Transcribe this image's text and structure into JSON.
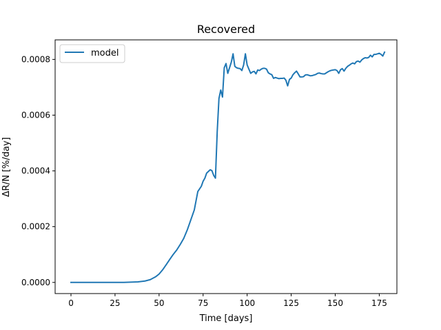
{
  "chart_data": {
    "type": "line",
    "title": "Recovered",
    "xlabel": "Time [days]",
    "ylabel": "ΔR/N [%/day]",
    "xlim": [
      -9,
      185
    ],
    "ylim": [
      -4e-05,
      0.00087
    ],
    "xticks": [
      0,
      25,
      50,
      75,
      100,
      125,
      150,
      175
    ],
    "xtick_labels": [
      "0",
      "25",
      "50",
      "75",
      "100",
      "125",
      "150",
      "175"
    ],
    "yticks": [
      0.0,
      0.0002,
      0.0004,
      0.0006,
      0.0008
    ],
    "ytick_labels": [
      "0.0000",
      "0.0002",
      "0.0004",
      "0.0006",
      "0.0008"
    ],
    "grid": false,
    "legend": {
      "position": "top-left",
      "entries": [
        "model"
      ]
    },
    "series": [
      {
        "name": "model",
        "color": "#1f77b4",
        "x": [
          0,
          10,
          20,
          30,
          38,
          42,
          45,
          48,
          50,
          52,
          54,
          56,
          58,
          60,
          62,
          64,
          66,
          68,
          70,
          72,
          74,
          75,
          76,
          77,
          78,
          79,
          80,
          81,
          82,
          83,
          84,
          85,
          86,
          87,
          88,
          89,
          90,
          91,
          92,
          93,
          94,
          95,
          96,
          97,
          98,
          99,
          100,
          101,
          102,
          103,
          104,
          105,
          106,
          107,
          108,
          109,
          110,
          111,
          112,
          113,
          114,
          115,
          116,
          117,
          118,
          119,
          120,
          121,
          122,
          123,
          124,
          125,
          126,
          127,
          128,
          129,
          130,
          131,
          132,
          133,
          134,
          135,
          136,
          137,
          138,
          139,
          140,
          141,
          142,
          143,
          144,
          145,
          146,
          147,
          148,
          149,
          150,
          151,
          152,
          153,
          154,
          155,
          156,
          157,
          158,
          159,
          160,
          161,
          162,
          163,
          164,
          165,
          166,
          167,
          168,
          169,
          170,
          171,
          172,
          173,
          174,
          175,
          176,
          177,
          178
        ],
        "y": [
          0.0,
          0.0,
          0.0,
          0.0,
          2e-06,
          5e-06,
          1e-05,
          2e-05,
          3e-05,
          4.5e-05,
          6.3e-05,
          8.2e-05,
          0.0001,
          0.000116,
          0.000136,
          0.000158,
          0.000188,
          0.000224,
          0.00026,
          0.000326,
          0.000345,
          0.000363,
          0.000374,
          0.000392,
          0.000398,
          0.000404,
          0.000401,
          0.000384,
          0.000374,
          0.00054,
          0.00066,
          0.00069,
          0.000665,
          0.00077,
          0.000785,
          0.00075,
          0.00077,
          0.00079,
          0.00082,
          0.000775,
          0.00077,
          0.000768,
          0.000767,
          0.00076,
          0.00078,
          0.00082,
          0.00078,
          0.000765,
          0.00075,
          0.000755,
          0.000757,
          0.000748,
          0.000762,
          0.00076,
          0.000765,
          0.000768,
          0.000768,
          0.000765,
          0.000752,
          0.000748,
          0.000745,
          0.000732,
          0.000735,
          0.000733,
          0.000731,
          0.000732,
          0.000732,
          0.000733,
          0.000725,
          0.000705,
          0.000728,
          0.000733,
          0.000745,
          0.000752,
          0.000758,
          0.000748,
          0.000737,
          0.000737,
          0.000738,
          0.000744,
          0.000745,
          0.000743,
          0.000741,
          0.000742,
          0.000744,
          0.000746,
          0.00075,
          0.000751,
          0.000749,
          0.000748,
          0.000748,
          0.000752,
          0.000756,
          0.000759,
          0.000761,
          0.000762,
          0.000763,
          0.00076,
          0.00075,
          0.000763,
          0.000767,
          0.000758,
          0.000768,
          0.000775,
          0.000779,
          0.000784,
          0.000787,
          0.000784,
          0.000792,
          0.000794,
          0.00079,
          0.000798,
          0.000803,
          0.000806,
          0.000805,
          0.000807,
          0.000815,
          0.000809,
          0.000818,
          0.000818,
          0.00082,
          0.000822,
          0.000818,
          0.000812,
          0.000826
        ]
      }
    ]
  }
}
